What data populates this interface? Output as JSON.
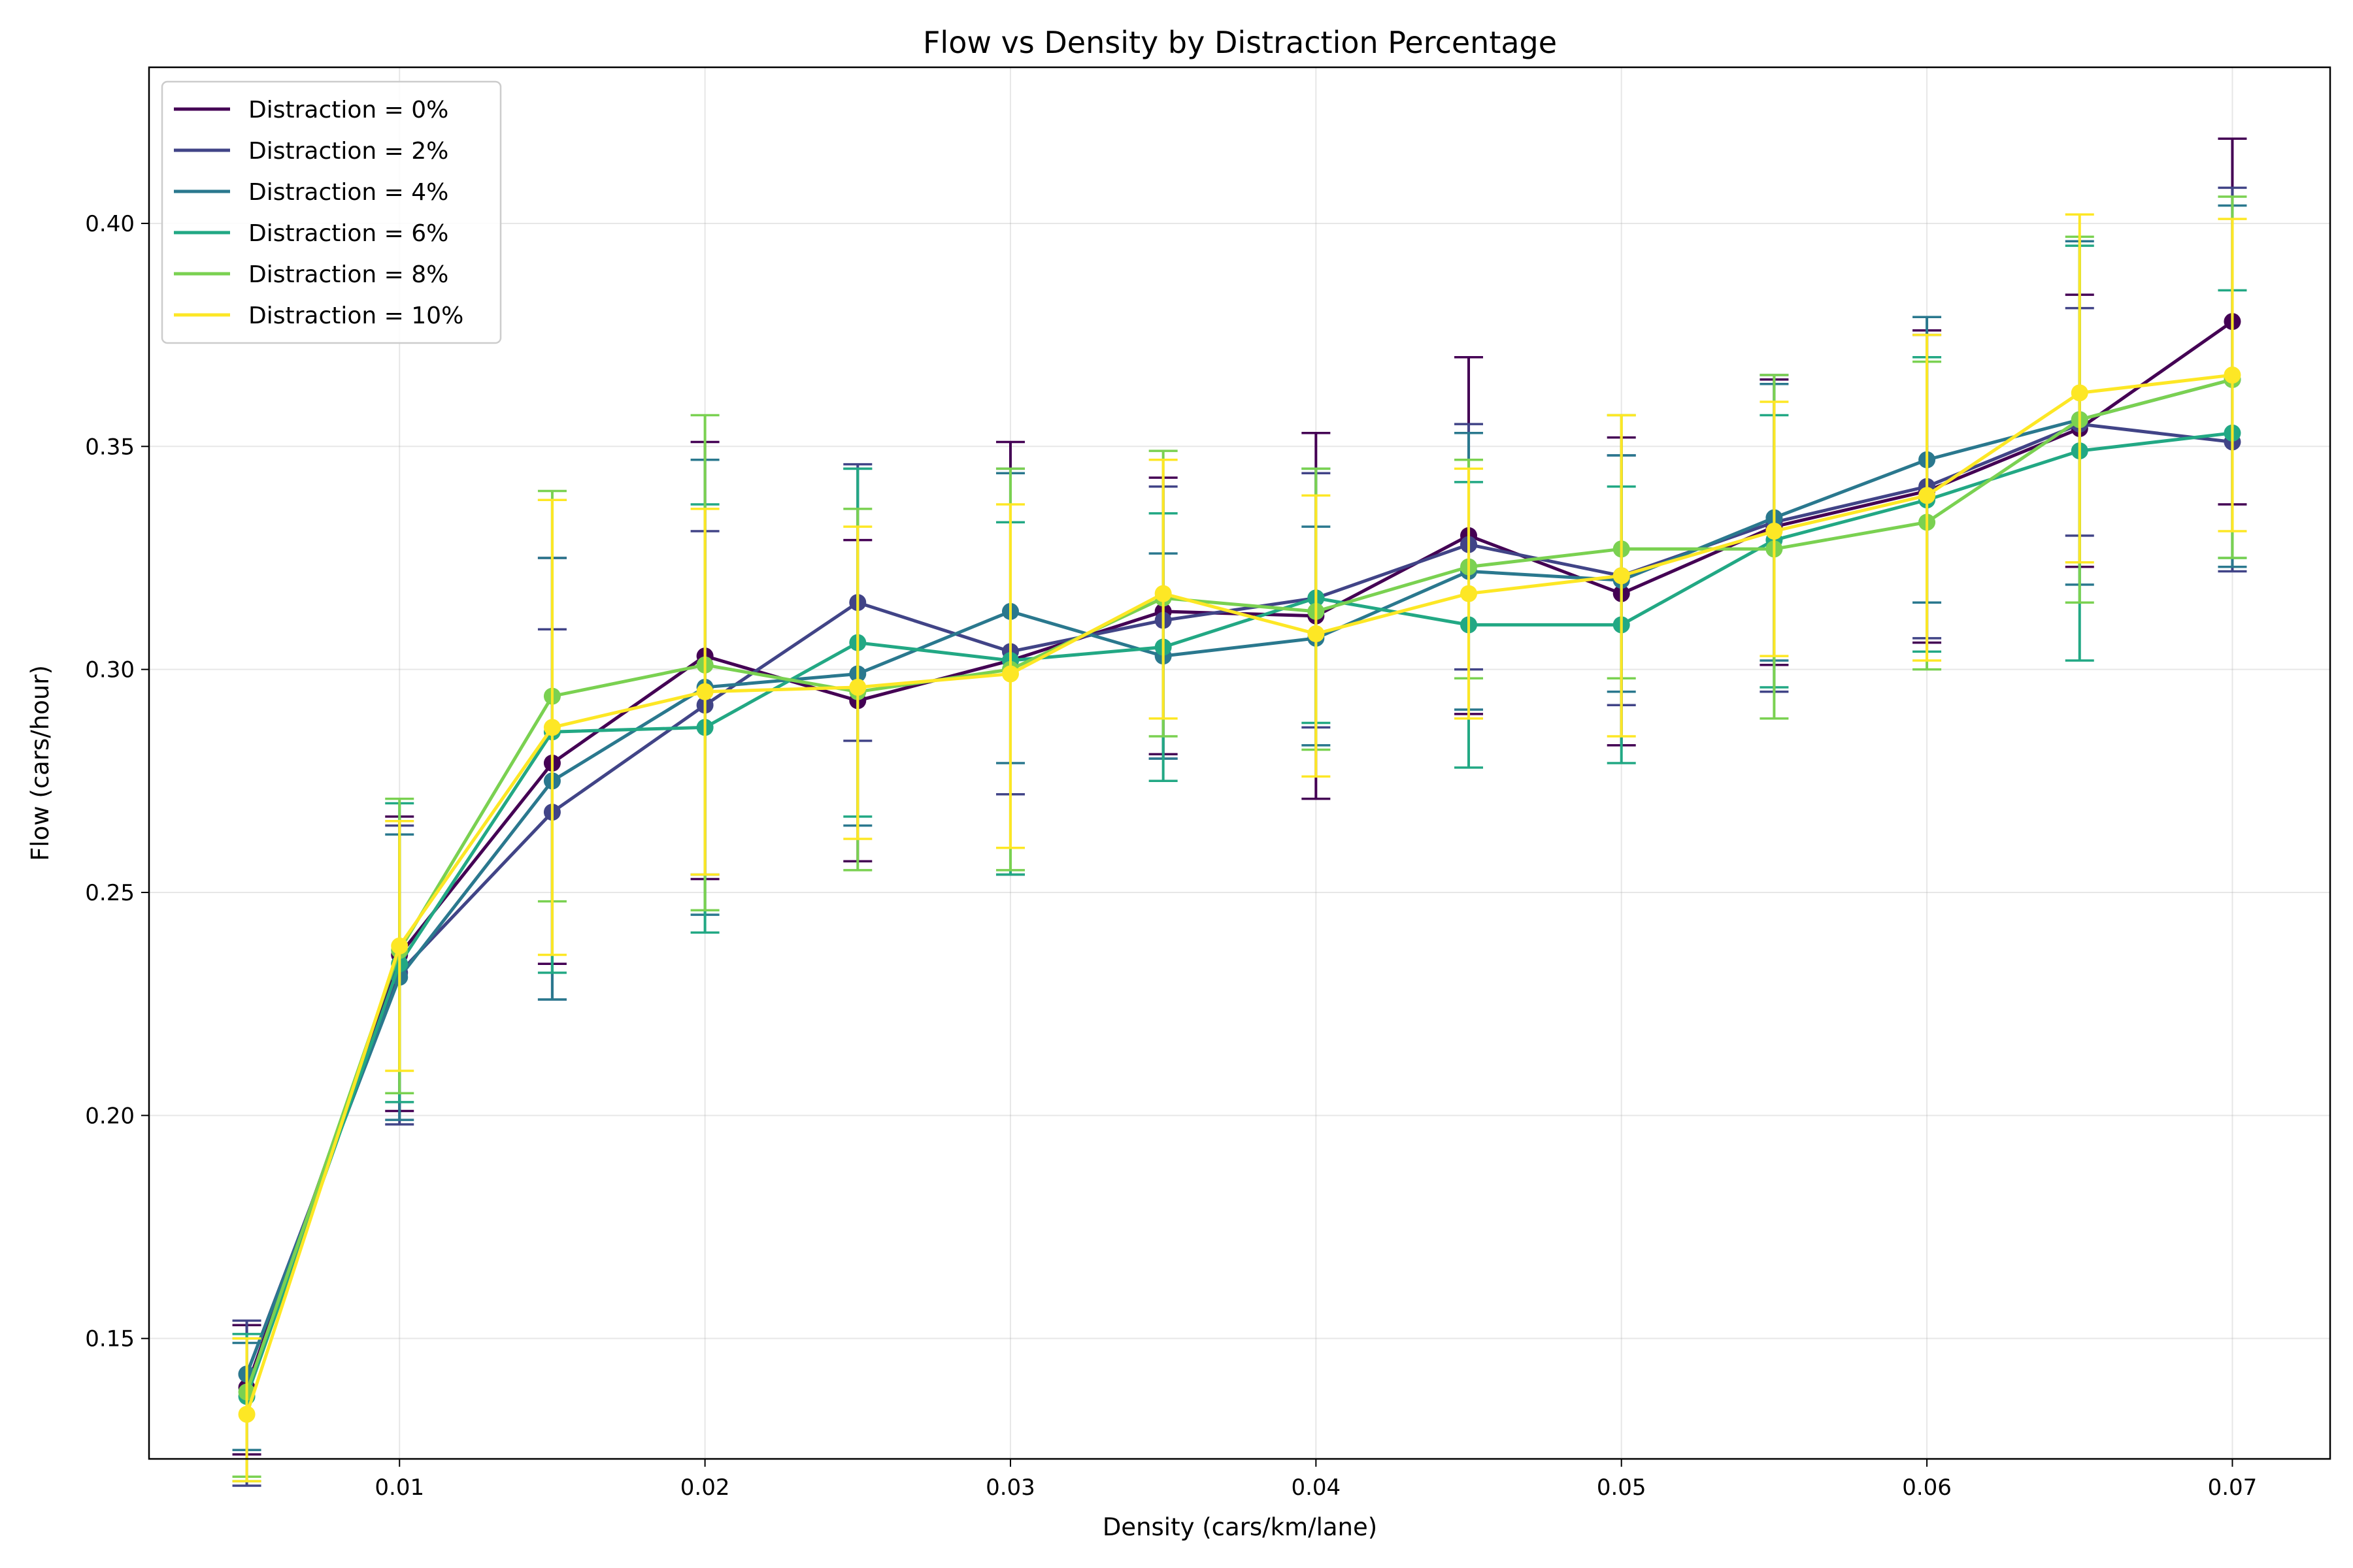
{
  "chart_data": {
    "type": "line",
    "title": "Flow vs Density by Distraction Percentage",
    "xlabel": "Density (cars/km/lane)",
    "ylabel": "Flow (cars/hour)",
    "xlim": [
      0.0018,
      0.0732
    ],
    "ylim": [
      0.123,
      0.435
    ],
    "xticks": [
      0.01,
      0.02,
      0.03,
      0.04,
      0.05,
      0.06,
      0.07
    ],
    "xtick_labels": [
      "0.01",
      "0.02",
      "0.03",
      "0.04",
      "0.05",
      "0.06",
      "0.07"
    ],
    "yticks": [
      0.15,
      0.2,
      0.25,
      0.3,
      0.35,
      0.4
    ],
    "ytick_labels": [
      "0.15",
      "0.20",
      "0.25",
      "0.30",
      "0.35",
      "0.40"
    ],
    "grid": true,
    "legend_position": "top-left",
    "x": [
      0.005,
      0.01,
      0.015,
      0.02,
      0.025,
      0.03,
      0.035,
      0.04,
      0.045,
      0.05,
      0.055,
      0.06,
      0.065,
      0.07
    ],
    "series": [
      {
        "name": "Distraction = 0%",
        "color": "#440154",
        "values": [
          0.139,
          0.236,
          0.279,
          0.303,
          0.293,
          0.302,
          0.313,
          0.312,
          0.33,
          0.317,
          0.332,
          0.34,
          0.354,
          0.378
        ],
        "err_low": [
          0.124,
          0.201,
          0.234,
          0.253,
          0.257,
          0.254,
          0.281,
          0.271,
          0.29,
          0.283,
          0.301,
          0.306,
          0.323,
          0.337
        ],
        "err_high": [
          0.153,
          0.267,
          0.325,
          0.351,
          0.329,
          0.351,
          0.343,
          0.353,
          0.37,
          0.352,
          0.365,
          0.376,
          0.384,
          0.419
        ]
      },
      {
        "name": "Distraction = 2%",
        "color": "#414487",
        "values": [
          0.142,
          0.232,
          0.268,
          0.292,
          0.315,
          0.304,
          0.311,
          0.316,
          0.328,
          0.321,
          0.333,
          0.341,
          0.355,
          0.351
        ],
        "err_low": [
          0.117,
          0.198,
          0.226,
          0.254,
          0.284,
          0.272,
          0.28,
          0.287,
          0.3,
          0.292,
          0.295,
          0.307,
          0.33,
          0.322
        ],
        "err_high": [
          0.154,
          0.265,
          0.309,
          0.331,
          0.346,
          0.345,
          0.341,
          0.344,
          0.355,
          0.348,
          0.366,
          0.375,
          0.381,
          0.408
        ]
      },
      {
        "name": "Distraction = 4%",
        "color": "#2a788e",
        "values": [
          0.142,
          0.231,
          0.275,
          0.296,
          0.299,
          0.313,
          0.303,
          0.307,
          0.322,
          0.32,
          0.334,
          0.347,
          0.356,
          0.365
        ],
        "err_low": [
          0.125,
          0.199,
          0.226,
          0.245,
          0.265,
          0.279,
          0.28,
          0.283,
          0.291,
          0.295,
          0.302,
          0.315,
          0.319,
          0.323
        ],
        "err_high": [
          0.149,
          0.263,
          0.325,
          0.347,
          0.345,
          0.344,
          0.326,
          0.332,
          0.353,
          0.348,
          0.364,
          0.379,
          0.396,
          0.404
        ]
      },
      {
        "name": "Distraction = 6%",
        "color": "#22a884",
        "values": [
          0.137,
          0.234,
          0.286,
          0.287,
          0.306,
          0.302,
          0.305,
          0.316,
          0.31,
          0.31,
          0.329,
          0.338,
          0.349,
          0.353
        ],
        "err_low": [
          0.118,
          0.203,
          0.232,
          0.241,
          0.267,
          0.254,
          0.275,
          0.288,
          0.278,
          0.279,
          0.296,
          0.304,
          0.302,
          0.325
        ],
        "err_high": [
          0.151,
          0.27,
          0.338,
          0.337,
          0.345,
          0.333,
          0.335,
          0.345,
          0.342,
          0.341,
          0.357,
          0.37,
          0.395,
          0.385
        ]
      },
      {
        "name": "Distraction = 8%",
        "color": "#7ad151",
        "values": [
          0.138,
          0.237,
          0.294,
          0.301,
          0.295,
          0.3,
          0.316,
          0.313,
          0.323,
          0.327,
          0.327,
          0.333,
          0.356,
          0.365
        ],
        "err_low": [
          0.119,
          0.205,
          0.248,
          0.246,
          0.255,
          0.255,
          0.285,
          0.282,
          0.298,
          0.298,
          0.289,
          0.3,
          0.315,
          0.325
        ],
        "err_high": [
          0.15,
          0.271,
          0.34,
          0.357,
          0.336,
          0.345,
          0.349,
          0.345,
          0.347,
          0.357,
          0.366,
          0.369,
          0.397,
          0.406
        ]
      },
      {
        "name": "Distraction = 10%",
        "color": "#fde725",
        "values": [
          0.133,
          0.238,
          0.287,
          0.295,
          0.296,
          0.299,
          0.317,
          0.308,
          0.317,
          0.321,
          0.331,
          0.339,
          0.362,
          0.366
        ],
        "err_low": [
          0.118,
          0.21,
          0.236,
          0.254,
          0.262,
          0.26,
          0.289,
          0.276,
          0.289,
          0.285,
          0.303,
          0.302,
          0.324,
          0.331
        ],
        "err_high": [
          0.15,
          0.266,
          0.338,
          0.336,
          0.332,
          0.337,
          0.347,
          0.339,
          0.345,
          0.357,
          0.36,
          0.375,
          0.402,
          0.401
        ]
      }
    ]
  }
}
